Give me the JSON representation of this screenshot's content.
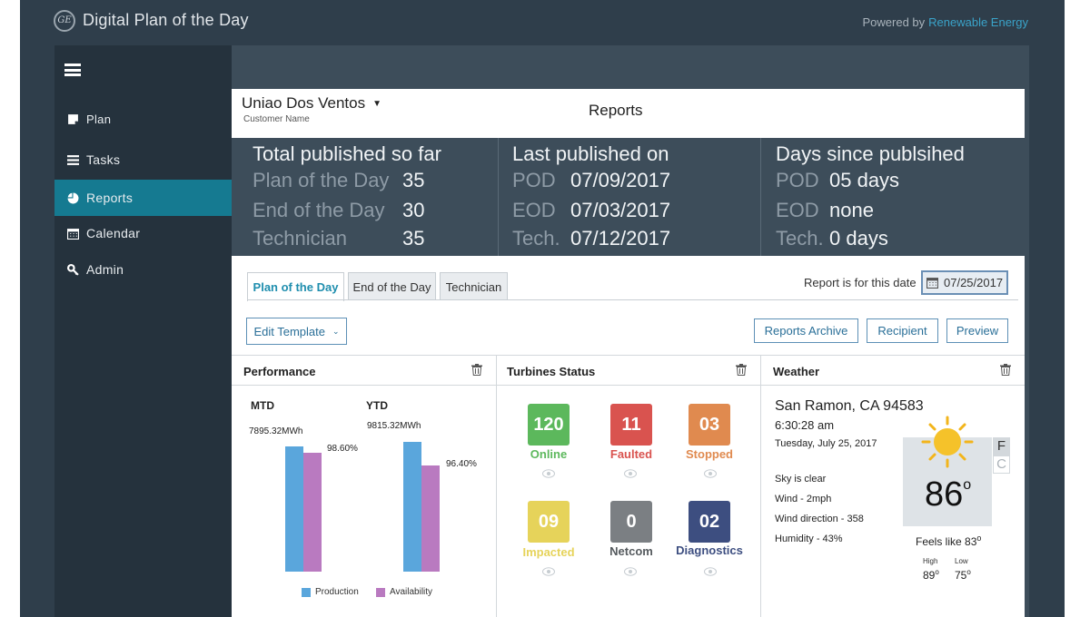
{
  "app": {
    "title": "Digital Plan of the Day",
    "logo_text": "GE",
    "powered_by": "Powered by",
    "powered_brand": "Renewable Energy"
  },
  "sidebar": {
    "items": [
      {
        "label": "Plan",
        "icon": "note-icon"
      },
      {
        "label": "Tasks",
        "icon": "list-icon"
      },
      {
        "label": "Reports",
        "icon": "pie-chart-icon",
        "active": true
      },
      {
        "label": "Calendar",
        "icon": "calendar-icon"
      },
      {
        "label": "Admin",
        "icon": "wrench-icon"
      }
    ]
  },
  "header": {
    "customer": "Uniao Dos Ventos",
    "customer_label": "Customer Name",
    "title": "Reports"
  },
  "stats": {
    "total": {
      "heading": "Total published so far",
      "rows": [
        {
          "label": "Plan of the Day",
          "value": "35"
        },
        {
          "label": "End of the Day",
          "value": "30"
        },
        {
          "label": "Technician",
          "value": "35"
        }
      ]
    },
    "last": {
      "heading": "Last published on",
      "rows": [
        {
          "label": "POD",
          "value": "07/09/2017"
        },
        {
          "label": "EOD",
          "value": "07/03/2017"
        },
        {
          "label": "Tech.",
          "value": "07/12/2017"
        }
      ]
    },
    "days": {
      "heading": "Days since publsihed",
      "rows": [
        {
          "label": "POD",
          "value": "05 days"
        },
        {
          "label": "EOD",
          "value": "none"
        },
        {
          "label": "Tech.",
          "value": "0 days"
        }
      ]
    }
  },
  "tabs": [
    {
      "label": "Plan of the Day",
      "active": true
    },
    {
      "label": "End of the Day"
    },
    {
      "label": "Technician"
    }
  ],
  "report_date": {
    "label": "Report is for this date",
    "value": "07/25/2017"
  },
  "actions": {
    "edit_template": "Edit Template",
    "archive": "Reports Archive",
    "recipient": "Recipient",
    "preview": "Preview"
  },
  "performance": {
    "title": "Performance",
    "groups": [
      {
        "label": "MTD",
        "production_label": "7895.32MWh",
        "availability_label": "98.60%",
        "production_level": 0.92,
        "availability_level": 0.87
      },
      {
        "label": "YTD",
        "production_label": "9815.32MWh",
        "availability_label": "96.40%",
        "production_level": 0.95,
        "availability_level": 0.78
      }
    ],
    "legend": {
      "production": "Production",
      "availability": "Availability"
    },
    "colors": {
      "production": "#5aa6dc",
      "availability": "#b97ac0"
    }
  },
  "turbines": {
    "title": "Turbines Status",
    "statuses": [
      {
        "count": "120",
        "label": "Online",
        "color": "#5cb85c"
      },
      {
        "count": "11",
        "label": "Faulted",
        "color": "#d9534f"
      },
      {
        "count": "03",
        "label": "Stopped",
        "color": "#e08a4f"
      },
      {
        "count": "09",
        "label": "Impacted",
        "color": "#e6d35a"
      },
      {
        "count": "0",
        "label": "Netcom",
        "color": "#7b7f83"
      },
      {
        "count": "02",
        "label": "Diagnostics",
        "color": "#3d4e80"
      }
    ]
  },
  "weather": {
    "title": "Weather",
    "location": "San Ramon, CA 94583",
    "time": "6:30:28 am",
    "date": "Tuesday, July 25, 2017",
    "sky": "Sky is clear",
    "wind": "Wind - 2mph",
    "wind_direction": "Wind direction - 358",
    "humidity": "Humidity - 43%",
    "temp": "86",
    "degree": "o",
    "unit_f": "F",
    "unit_c": "C",
    "feels_like": "Feels like 83",
    "high_label": "High",
    "high": "89",
    "low_label": "Low",
    "low": "75"
  }
}
